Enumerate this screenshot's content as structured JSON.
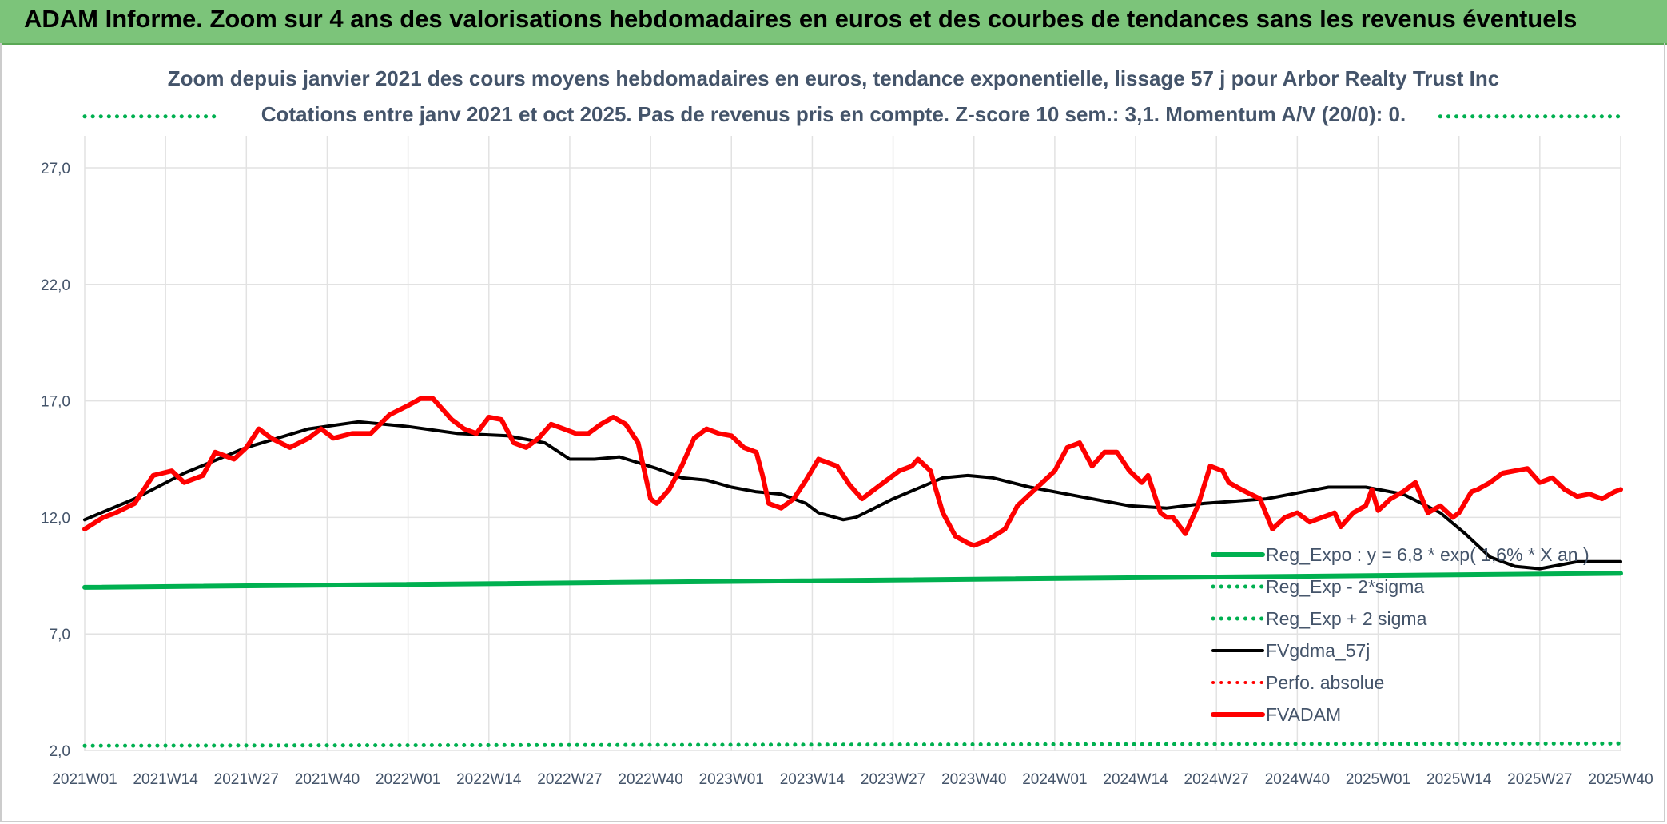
{
  "header": {
    "title": "ADAM Informe. Zoom sur 4 ans des valorisations hebdomadaires en euros et des courbes de tendances sans les revenus éventuels"
  },
  "chart_data": {
    "type": "line",
    "title": "Zoom depuis janvier 2021 des cours moyens hebdomadaires en euros, tendance exponentielle, lissage 57 j pour Arbor Realty Trust Inc",
    "subtitle": "Cotations entre janv 2021 et oct 2025. Pas de revenus pris en compte. Z-score 10 sem.: 3,1. Momentum A/V (20/0): 0.",
    "xlabel": "",
    "ylabel": "",
    "ylim": [
      2,
      28
    ],
    "y_ticks": [
      "2,0",
      "7,0",
      "12,0",
      "17,0",
      "22,0",
      "27,0"
    ],
    "y_tick_values": [
      2,
      7,
      12,
      17,
      22,
      27
    ],
    "x_range": [
      0,
      248
    ],
    "x_tick_positions": [
      0,
      13,
      26,
      39,
      52,
      65,
      78,
      91,
      104,
      117,
      130,
      143,
      156,
      169,
      182,
      195,
      208,
      221,
      234,
      247
    ],
    "x_ticks": [
      "2021W01",
      "2021W14",
      "2021W27",
      "2021W40",
      "2022W01",
      "2022W14",
      "2022W27",
      "2022W40",
      "2023W01",
      "2023W14",
      "2023W27",
      "2023W40",
      "2024W01",
      "2024W14",
      "2024W27",
      "2024W40",
      "2025W01",
      "2025W14",
      "2025W27",
      "2025W40"
    ],
    "series": [
      {
        "name": "Reg_Expo : y = 6,8 * exp( 1,6% *  X  an )",
        "color": "#00b050",
        "style": "solid",
        "width": 6,
        "points": [
          [
            0,
            9.0
          ],
          [
            247,
            9.6
          ]
        ]
      },
      {
        "name": "Reg_Exp - 2*sigma",
        "color": "#00b050",
        "style": "dotted",
        "width": 5,
        "points": [
          [
            0,
            2.2
          ],
          [
            247,
            2.3
          ]
        ]
      },
      {
        "name": "Reg_Exp + 2 sigma",
        "color": "#00b050",
        "style": "dotted",
        "width": 5,
        "points": [
          [
            0,
            29.2
          ],
          [
            22,
            29.2
          ]
        ],
        "points2": [
          [
            218,
            29.2
          ],
          [
            247,
            29.2
          ]
        ]
      },
      {
        "name": "FVgdma_57j",
        "color": "#000000",
        "style": "solid",
        "width": 4,
        "points": [
          [
            0,
            11.9
          ],
          [
            8,
            12.8
          ],
          [
            16,
            13.9
          ],
          [
            26,
            15.0
          ],
          [
            36,
            15.8
          ],
          [
            44,
            16.1
          ],
          [
            52,
            15.9
          ],
          [
            60,
            15.6
          ],
          [
            68,
            15.5
          ],
          [
            74,
            15.2
          ],
          [
            78,
            14.5
          ],
          [
            82,
            14.5
          ],
          [
            86,
            14.6
          ],
          [
            92,
            14.1
          ],
          [
            96,
            13.7
          ],
          [
            100,
            13.6
          ],
          [
            104,
            13.3
          ],
          [
            108,
            13.1
          ],
          [
            112,
            13.0
          ],
          [
            116,
            12.6
          ],
          [
            118,
            12.2
          ],
          [
            122,
            11.9
          ],
          [
            124,
            12.0
          ],
          [
            130,
            12.8
          ],
          [
            138,
            13.7
          ],
          [
            142,
            13.8
          ],
          [
            146,
            13.7
          ],
          [
            152,
            13.3
          ],
          [
            160,
            12.9
          ],
          [
            168,
            12.5
          ],
          [
            174,
            12.4
          ],
          [
            180,
            12.6
          ],
          [
            190,
            12.8
          ],
          [
            196,
            13.1
          ],
          [
            200,
            13.3
          ],
          [
            206,
            13.3
          ],
          [
            212,
            13.0
          ],
          [
            218,
            12.2
          ],
          [
            222,
            11.3
          ],
          [
            226,
            10.3
          ],
          [
            230,
            9.9
          ],
          [
            234,
            9.8
          ],
          [
            240,
            10.1
          ],
          [
            247,
            10.1
          ]
        ]
      },
      {
        "name": "Perfo. absolue",
        "color": "#ff0000",
        "style": "dotted",
        "width": 4,
        "points": []
      },
      {
        "name": "FVADAM",
        "color": "#ff0000",
        "style": "solid",
        "width": 6,
        "points": [
          [
            0,
            11.5
          ],
          [
            3,
            12.0
          ],
          [
            5,
            12.2
          ],
          [
            8,
            12.6
          ],
          [
            11,
            13.8
          ],
          [
            14,
            14.0
          ],
          [
            16,
            13.5
          ],
          [
            19,
            13.8
          ],
          [
            21,
            14.8
          ],
          [
            24,
            14.5
          ],
          [
            26,
            15.0
          ],
          [
            28,
            15.8
          ],
          [
            30,
            15.4
          ],
          [
            33,
            15.0
          ],
          [
            36,
            15.4
          ],
          [
            38,
            15.8
          ],
          [
            40,
            15.4
          ],
          [
            43,
            15.6
          ],
          [
            46,
            15.6
          ],
          [
            49,
            16.4
          ],
          [
            52,
            16.8
          ],
          [
            54,
            17.1
          ],
          [
            56,
            17.1
          ],
          [
            59,
            16.2
          ],
          [
            61,
            15.8
          ],
          [
            63,
            15.6
          ],
          [
            65,
            16.3
          ],
          [
            67,
            16.2
          ],
          [
            69,
            15.2
          ],
          [
            71,
            15.0
          ],
          [
            73,
            15.4
          ],
          [
            75,
            16.0
          ],
          [
            77,
            15.8
          ],
          [
            79,
            15.6
          ],
          [
            81,
            15.6
          ],
          [
            83,
            16.0
          ],
          [
            85,
            16.3
          ],
          [
            87,
            16.0
          ],
          [
            89,
            15.2
          ],
          [
            90,
            14.0
          ],
          [
            91,
            12.8
          ],
          [
            92,
            12.6
          ],
          [
            94,
            13.2
          ],
          [
            96,
            14.2
          ],
          [
            98,
            15.4
          ],
          [
            100,
            15.8
          ],
          [
            102,
            15.6
          ],
          [
            104,
            15.5
          ],
          [
            106,
            15.0
          ],
          [
            108,
            14.8
          ],
          [
            109,
            13.8
          ],
          [
            110,
            12.6
          ],
          [
            112,
            12.4
          ],
          [
            114,
            12.8
          ],
          [
            116,
            13.6
          ],
          [
            118,
            14.5
          ],
          [
            120,
            14.3
          ],
          [
            121,
            14.2
          ],
          [
            123,
            13.4
          ],
          [
            125,
            12.8
          ],
          [
            127,
            13.2
          ],
          [
            129,
            13.6
          ],
          [
            131,
            14.0
          ],
          [
            133,
            14.2
          ],
          [
            134,
            14.5
          ],
          [
            136,
            14.0
          ],
          [
            138,
            12.2
          ],
          [
            140,
            11.2
          ],
          [
            142,
            10.9
          ],
          [
            143,
            10.8
          ],
          [
            145,
            11.0
          ],
          [
            148,
            11.5
          ],
          [
            150,
            12.5
          ],
          [
            152,
            13.0
          ],
          [
            154,
            13.5
          ],
          [
            156,
            14.0
          ],
          [
            158,
            15.0
          ],
          [
            160,
            15.2
          ],
          [
            162,
            14.2
          ],
          [
            164,
            14.8
          ],
          [
            166,
            14.8
          ],
          [
            168,
            14.0
          ],
          [
            170,
            13.5
          ],
          [
            171,
            13.8
          ],
          [
            173,
            12.2
          ],
          [
            174,
            12.0
          ],
          [
            175,
            12.0
          ],
          [
            177,
            11.3
          ],
          [
            179,
            12.5
          ],
          [
            181,
            14.2
          ],
          [
            183,
            14.0
          ],
          [
            184,
            13.5
          ],
          [
            186,
            13.2
          ],
          [
            189,
            12.8
          ],
          [
            191,
            11.5
          ],
          [
            193,
            12.0
          ],
          [
            195,
            12.2
          ],
          [
            197,
            11.8
          ],
          [
            199,
            12.0
          ],
          [
            201,
            12.2
          ],
          [
            202,
            11.6
          ],
          [
            204,
            12.2
          ],
          [
            206,
            12.5
          ],
          [
            207,
            13.2
          ],
          [
            208,
            12.3
          ],
          [
            210,
            12.8
          ],
          [
            212,
            13.1
          ],
          [
            214,
            13.5
          ],
          [
            216,
            12.2
          ],
          [
            218,
            12.5
          ],
          [
            220,
            12.0
          ],
          [
            221,
            12.2
          ],
          [
            223,
            13.1
          ],
          [
            224,
            13.2
          ],
          [
            226,
            13.5
          ],
          [
            228,
            13.9
          ],
          [
            230,
            14.0
          ],
          [
            232,
            14.1
          ],
          [
            234,
            13.5
          ],
          [
            236,
            13.7
          ],
          [
            238,
            13.2
          ],
          [
            240,
            12.9
          ],
          [
            242,
            13.0
          ],
          [
            244,
            12.8
          ],
          [
            246,
            13.1
          ],
          [
            247,
            13.2
          ]
        ]
      }
    ],
    "legend_position": "bottom-right"
  }
}
